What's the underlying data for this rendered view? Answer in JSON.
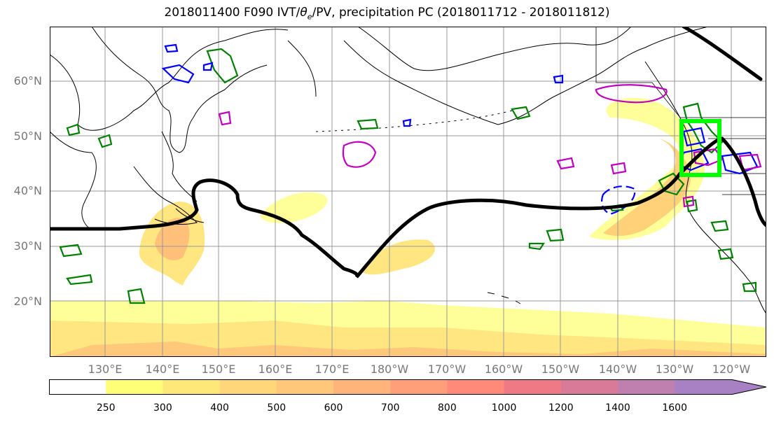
{
  "title": "2018011400 F090 IVT/θe/PV, precipitation PC (2018011712 - 2018011812)",
  "title_parts": {
    "prefix": "2018011400 F090 IVT/",
    "theta": "θ",
    "sub": "e",
    "suffix": "/PV, precipitation PC (2018011712 - 2018011812)"
  },
  "lat_labels": [
    "60°N",
    "50°N",
    "40°N",
    "30°N",
    "20°N"
  ],
  "lon_labels": [
    "130°E",
    "140°E",
    "150°E",
    "160°E",
    "170°E",
    "180°W",
    "170°W",
    "160°W",
    "150°W",
    "140°W",
    "130°W",
    "120°W"
  ],
  "colorbar": {
    "levels": [
      "250",
      "300",
      "400",
      "500",
      "600",
      "700",
      "800",
      "1000",
      "1200",
      "1400",
      "1600"
    ],
    "colors": [
      "#ffffff",
      "#ffff77",
      "#ffe87a",
      "#ffd67a",
      "#ffc77a",
      "#ffb57a",
      "#ff9f7a",
      "#ff8a7a",
      "#ef7a86",
      "#d97a98",
      "#bf80b0",
      "#a880c4"
    ]
  },
  "colors": {
    "ivt_fill_low": "#ffff99",
    "ivt_fill_mid": "#ffe680",
    "ivt_fill_high": "#ffc07a",
    "jet_line": "#000000",
    "pv_contour": "#008000",
    "theta_contour_blue": "#0000ff",
    "theta_contour_magenta": "#c000c0",
    "target_box": "#00ff00",
    "grid": "#999999",
    "coast": "#000000"
  }
}
